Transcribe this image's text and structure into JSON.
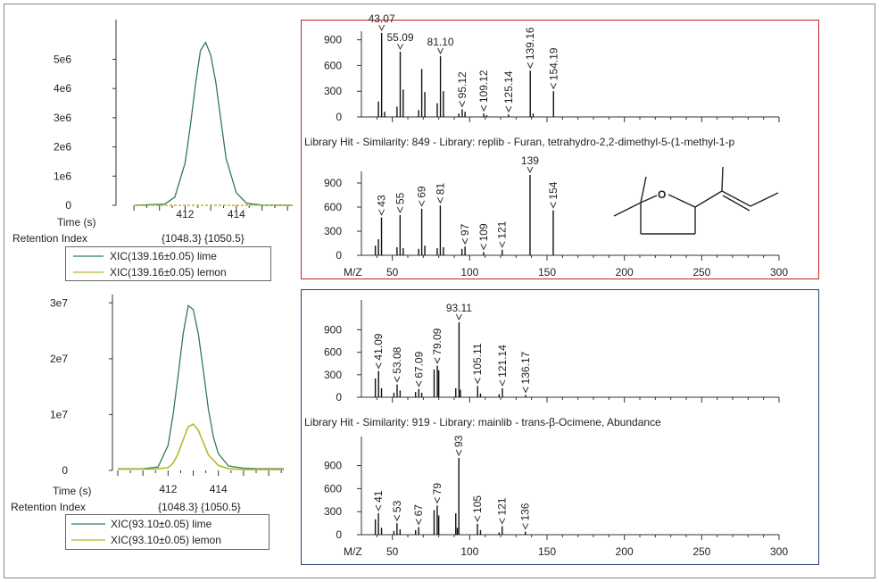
{
  "colors": {
    "lime": "#2e7d4f",
    "lemon": "#b8b828",
    "red_frame": "#cc2222",
    "blue_frame": "#2a3f7a"
  },
  "chart_data": [
    {
      "id": "xic_top",
      "type": "line",
      "x_ticks": [
        412,
        414
      ],
      "xlim": [
        410.0,
        416.2
      ],
      "y_ticks": [
        0,
        1000000,
        2000000,
        3000000,
        4000000,
        5000000
      ],
      "y_tick_labels": [
        "0",
        "1e6",
        "2e6",
        "3e6",
        "4e6",
        "5e6"
      ],
      "ylim": [
        0,
        5900000
      ],
      "xlabel": "Time (s)",
      "ri_label": "Retention Index",
      "ri_values": "{1048.3} {1050.5}",
      "series": [
        {
          "name": "XIC(139.16±0.05) lime",
          "color": "#2e7d4f",
          "x": [
            410.0,
            411.2,
            411.6,
            412.0,
            412.2,
            412.4,
            412.6,
            412.8,
            413.0,
            413.2,
            413.4,
            413.6,
            414.0,
            414.4,
            415.0,
            416.2
          ],
          "y": [
            0,
            40000,
            280000,
            1450000,
            2700000,
            4100000,
            5300000,
            5580000,
            5150000,
            4200000,
            2900000,
            1600000,
            430000,
            70000,
            5000,
            0
          ]
        },
        {
          "name": "XIC(139.16±0.05) lemon",
          "color": "#b8b828",
          "x": [
            410.0,
            416.2
          ],
          "y": [
            0,
            0
          ]
        }
      ]
    },
    {
      "id": "xic_bottom",
      "type": "line",
      "x_ticks": [
        412,
        414
      ],
      "xlim": [
        410.0,
        416.6
      ],
      "y_ticks": [
        0,
        10000000,
        20000000,
        30000000
      ],
      "y_tick_labels": [
        "0",
        "1e7",
        "2e7",
        "3e7"
      ],
      "ylim": [
        0,
        31000000
      ],
      "xlabel": "Time (s)",
      "ri_label": "Retention Index",
      "ri_values": "{1048.3} {1050.5}",
      "series": [
        {
          "name": "XIC(93.10±0.05) lime",
          "color": "#2e7d4f",
          "x": [
            410.0,
            411.0,
            411.6,
            412.0,
            412.2,
            412.4,
            412.6,
            412.8,
            413.0,
            413.2,
            413.4,
            413.6,
            413.8,
            414.0,
            414.4,
            415.0,
            415.6,
            416.6
          ],
          "y": [
            300000,
            300000,
            600000,
            4500000,
            10000000,
            17000000,
            24500000,
            29500000,
            28800000,
            24500000,
            18000000,
            11000000,
            6000000,
            3000000,
            800000,
            400000,
            300000,
            300000
          ]
        },
        {
          "name": "XIC(93.10±0.05) lemon",
          "color": "#b8b828",
          "x": [
            410.0,
            411.5,
            412.0,
            412.2,
            412.4,
            412.6,
            412.8,
            413.0,
            413.2,
            413.4,
            413.6,
            414.0,
            414.4,
            415.0,
            416.6
          ],
          "y": [
            200000,
            250000,
            500000,
            1300000,
            3000000,
            5500000,
            7800000,
            8300000,
            7200000,
            5000000,
            2800000,
            900000,
            300000,
            150000,
            150000
          ]
        }
      ]
    },
    {
      "id": "ms_top_sample",
      "type": "bar",
      "xlim": [
        30,
        300
      ],
      "ylim": [
        0,
        1000
      ],
      "y_ticks": [
        0,
        300,
        600,
        900
      ],
      "x": [
        41,
        43.07,
        45,
        53,
        55.09,
        57,
        67,
        69,
        71,
        79,
        81.1,
        83,
        93,
        95.12,
        97,
        109.12,
        111,
        125.14,
        139.16,
        141,
        154.19
      ],
      "values": [
        180,
        980,
        60,
        120,
        760,
        320,
        80,
        560,
        290,
        160,
        710,
        300,
        40,
        90,
        60,
        40,
        20,
        30,
        540,
        40,
        300
      ],
      "peak_labels": [
        {
          "x": 43.07,
          "text": "43.07",
          "style": "h"
        },
        {
          "x": 55.09,
          "text": "55.09",
          "style": "h"
        },
        {
          "x": 81.1,
          "text": "81.10",
          "style": "h"
        },
        {
          "x": 95.12,
          "text": "95.12",
          "style": "v"
        },
        {
          "x": 109.12,
          "text": "109.12",
          "style": "v"
        },
        {
          "x": 125.14,
          "text": "125.14",
          "style": "v"
        },
        {
          "x": 139.16,
          "text": "139.16",
          "style": "v"
        },
        {
          "x": 154.19,
          "text": "154.19",
          "style": "v"
        }
      ]
    },
    {
      "id": "ms_top_lib",
      "type": "bar",
      "title": "Library Hit - Similarity: 849 - Library: replib - Furan, tetrahydro-2,2-dimethyl-5-(1-methyl-1-p",
      "xlim": [
        30,
        300
      ],
      "ylim": [
        0,
        1000
      ],
      "y_ticks": [
        0,
        300,
        600,
        900
      ],
      "x_ticks": [
        50,
        100,
        150,
        200,
        250,
        300
      ],
      "xlabel": "M/Z",
      "x": [
        39,
        41,
        43,
        53,
        55,
        57,
        67,
        69,
        71,
        79,
        81,
        83,
        95,
        97,
        109,
        121,
        139,
        154
      ],
      "values": [
        120,
        200,
        470,
        100,
        500,
        90,
        80,
        580,
        120,
        90,
        620,
        100,
        80,
        110,
        40,
        70,
        1000,
        560
      ],
      "peak_labels": [
        {
          "x": 43,
          "text": "43"
        },
        {
          "x": 55,
          "text": "55"
        },
        {
          "x": 69,
          "text": "69"
        },
        {
          "x": 81,
          "text": "81"
        },
        {
          "x": 97,
          "text": "97"
        },
        {
          "x": 109,
          "text": "109"
        },
        {
          "x": 121,
          "text": "121"
        },
        {
          "x": 139,
          "text": "139",
          "style": "h"
        },
        {
          "x": 154,
          "text": "154"
        }
      ],
      "structure_atom": "O"
    },
    {
      "id": "ms_bottom_sample",
      "type": "bar",
      "xlim": [
        30,
        300
      ],
      "ylim": [
        0,
        1000
      ],
      "y_ticks": [
        0,
        300,
        600,
        900
      ],
      "x": [
        39,
        41.09,
        43,
        51,
        53.08,
        55,
        65,
        67.09,
        69,
        77,
        79.09,
        80,
        91,
        93.11,
        94,
        105.11,
        107,
        119,
        121.14,
        136.17
      ],
      "values": [
        250,
        350,
        120,
        60,
        170,
        90,
        70,
        110,
        60,
        370,
        420,
        360,
        120,
        1000,
        100,
        150,
        50,
        40,
        120,
        30
      ],
      "peak_labels": [
        {
          "x": 41.09,
          "text": "41.09",
          "style": "v"
        },
        {
          "x": 53.08,
          "text": "53.08",
          "style": "v"
        },
        {
          "x": 67.09,
          "text": "67.09",
          "style": "v"
        },
        {
          "x": 79.09,
          "text": "79.09",
          "style": "v"
        },
        {
          "x": 93.11,
          "text": "93.11",
          "style": "h"
        },
        {
          "x": 105.11,
          "text": "105.11",
          "style": "v"
        },
        {
          "x": 121.14,
          "text": "121.14",
          "style": "v"
        },
        {
          "x": 136.17,
          "text": "136.17",
          "style": "v"
        }
      ]
    },
    {
      "id": "ms_bottom_lib",
      "type": "bar",
      "title": "Library Hit - Similarity: 919 - Library: mainlib - trans-β-Ocimene, Abundance",
      "xlim": [
        30,
        300
      ],
      "ylim": [
        0,
        1000
      ],
      "y_ticks": [
        0,
        300,
        600,
        900
      ],
      "x_ticks": [
        50,
        100,
        150,
        200,
        250,
        300
      ],
      "xlabel": "M/Z",
      "x": [
        39,
        41,
        43,
        51,
        53,
        55,
        65,
        67,
        77,
        79,
        80,
        91,
        92,
        93,
        105,
        107,
        119,
        121,
        136
      ],
      "values": [
        200,
        280,
        90,
        50,
        150,
        70,
        60,
        100,
        320,
        380,
        250,
        280,
        90,
        1000,
        140,
        60,
        30,
        110,
        40
      ],
      "peak_labels": [
        {
          "x": 41,
          "text": "41"
        },
        {
          "x": 53,
          "text": "53"
        },
        {
          "x": 67,
          "text": "67"
        },
        {
          "x": 79,
          "text": "79"
        },
        {
          "x": 93,
          "text": "93"
        },
        {
          "x": 105,
          "text": "105"
        },
        {
          "x": 121,
          "text": "121"
        },
        {
          "x": 136,
          "text": "136"
        }
      ]
    }
  ]
}
